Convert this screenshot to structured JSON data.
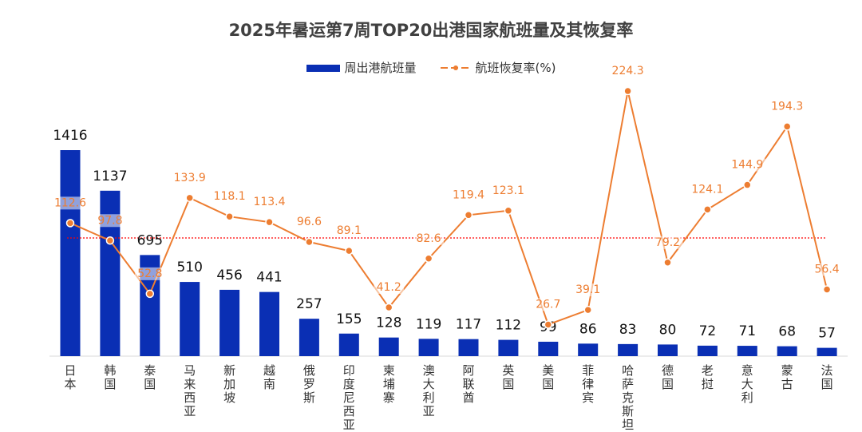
{
  "chart_data": {
    "type": "bar",
    "title": "2025年暑运第7周TOP20出港国家航班量及其恢复率",
    "categories": [
      "日本",
      "韩国",
      "泰国",
      "马来西亚",
      "新加坡",
      "越南",
      "俄罗斯",
      "印度尼西亚",
      "柬埔寨",
      "澳大利亚",
      "阿联酋",
      "英国",
      "美国",
      "菲律宾",
      "哈萨克斯坦",
      "德国",
      "老挝",
      "意大利",
      "蒙古",
      "法国"
    ],
    "series": [
      {
        "name": "周出港航班量",
        "type": "bar",
        "color": "#0a2fb4",
        "values": [
          1416,
          1137,
          695,
          510,
          456,
          441,
          257,
          155,
          128,
          119,
          117,
          112,
          99,
          86,
          83,
          80,
          72,
          71,
          68,
          57
        ]
      },
      {
        "name": "航班恢复率(%)",
        "type": "line",
        "color": "#ed7d31",
        "values": [
          112.6,
          97.8,
          52.8,
          133.9,
          118.1,
          113.4,
          96.6,
          89.1,
          41.2,
          82.6,
          119.4,
          123.1,
          26.7,
          39.1,
          224.3,
          79.2,
          124.1,
          144.9,
          194.3,
          56.4
        ]
      }
    ],
    "reference_line": {
      "value": 100,
      "color": "#ff0000",
      "style": "dotted"
    },
    "bar_ylim": [
      0,
      1600
    ],
    "rate_ylim": [
      0,
      250
    ],
    "legend_position": "top-center",
    "grid": false
  }
}
